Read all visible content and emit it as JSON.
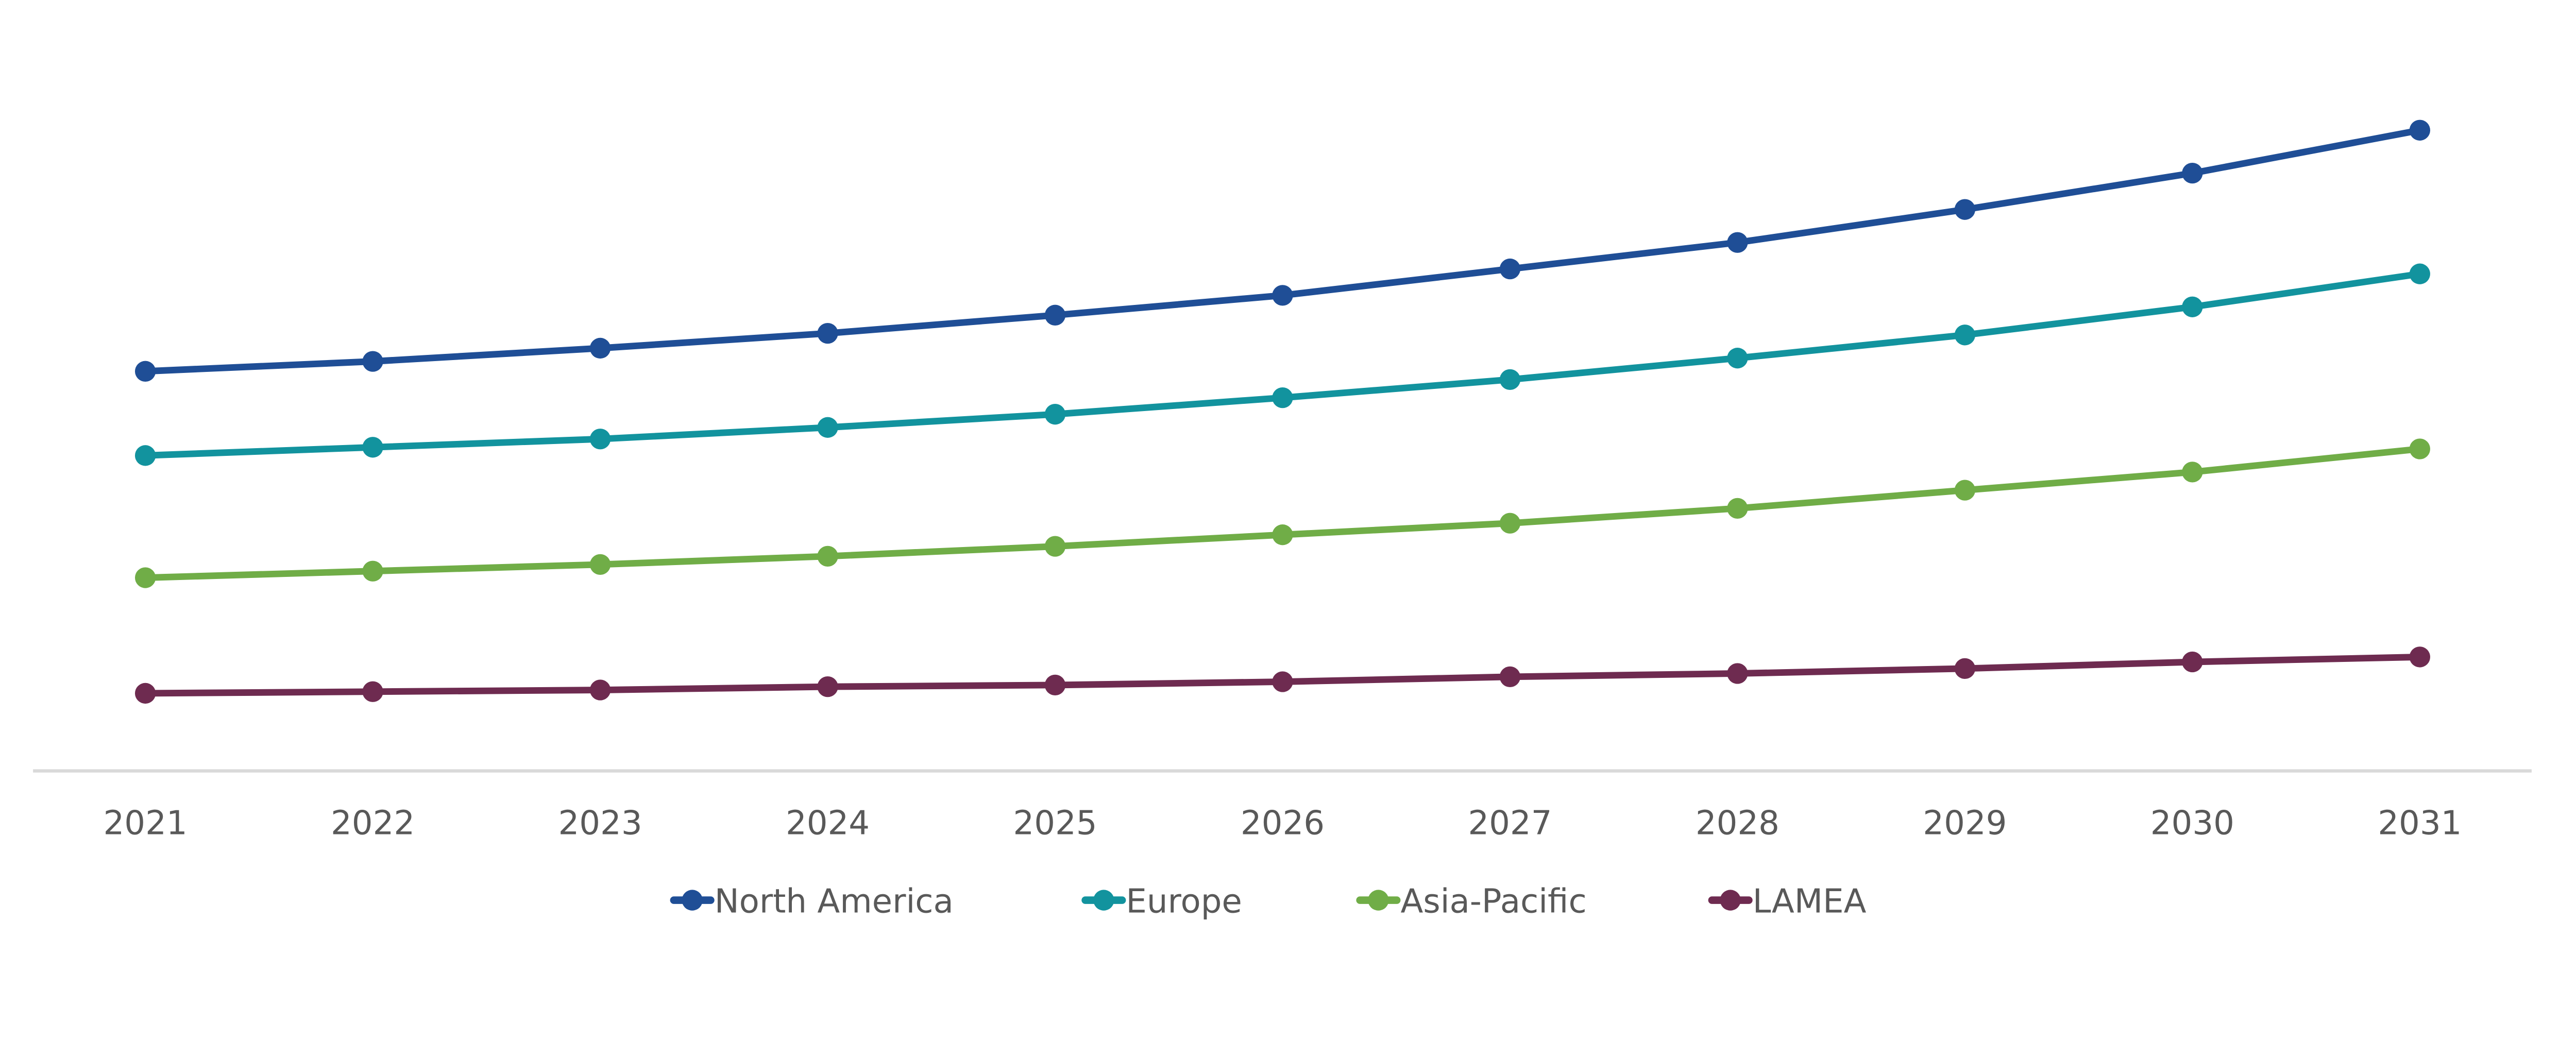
{
  "chart_data": {
    "type": "line",
    "title": "",
    "xlabel": "",
    "ylabel": "",
    "y_axis_labels_shown": false,
    "grid": false,
    "legend_placement": "bottom",
    "ylim": [
      0,
      450
    ],
    "x": [
      "2021",
      "2022",
      "2023",
      "2024",
      "2025",
      "2026",
      "2027",
      "2028",
      "2029",
      "2030",
      "2031"
    ],
    "series": [
      {
        "name": "North America",
        "color": "#1F4E96",
        "values": [
          242,
          248,
          256,
          265,
          276,
          288,
          304,
          320,
          340,
          362,
          388
        ]
      },
      {
        "name": "Europe",
        "color": "#12939E",
        "values": [
          191,
          196,
          201,
          208,
          216,
          226,
          237,
          250,
          264,
          281,
          301
        ]
      },
      {
        "name": "Asia-Pacific",
        "color": "#70AD47",
        "values": [
          117,
          121,
          125,
          130,
          136,
          143,
          150,
          159,
          170,
          181,
          195
        ]
      },
      {
        "name": "LAMEA",
        "color": "#6E2B50",
        "values": [
          47,
          48,
          49,
          51,
          52,
          54,
          57,
          59,
          62,
          66,
          69
        ]
      }
    ],
    "axis_color": "#D9D9D9",
    "text_color": "#595959"
  }
}
